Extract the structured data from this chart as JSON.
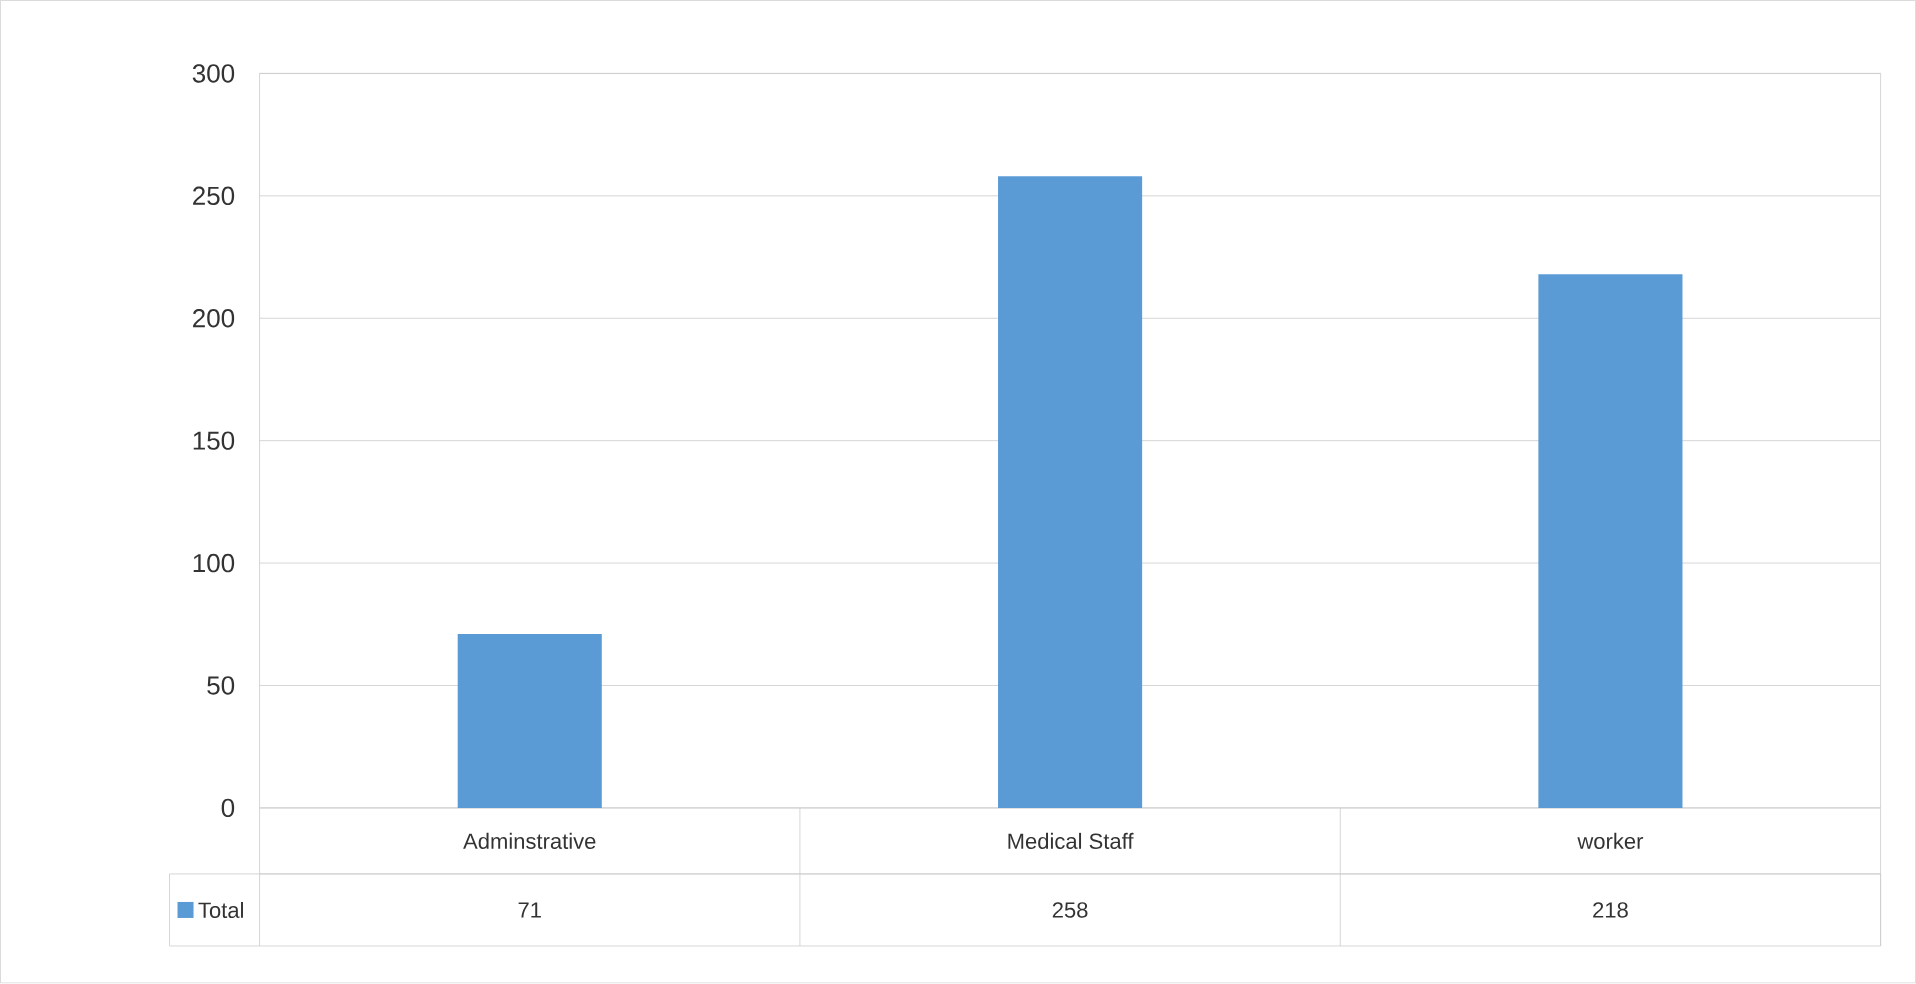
{
  "chart_data": {
    "type": "bar",
    "categories": [
      "Adminstrative",
      "Medical Staff",
      "worker"
    ],
    "series": [
      {
        "name": "Total",
        "color": "#5b9bd5",
        "values": [
          71,
          258,
          218
        ]
      }
    ],
    "ylim": [
      0,
      300
    ],
    "yticks": [
      0,
      50,
      100,
      150,
      200,
      250,
      300
    ],
    "grid": true,
    "legend": "bottom",
    "data_labels": true
  }
}
